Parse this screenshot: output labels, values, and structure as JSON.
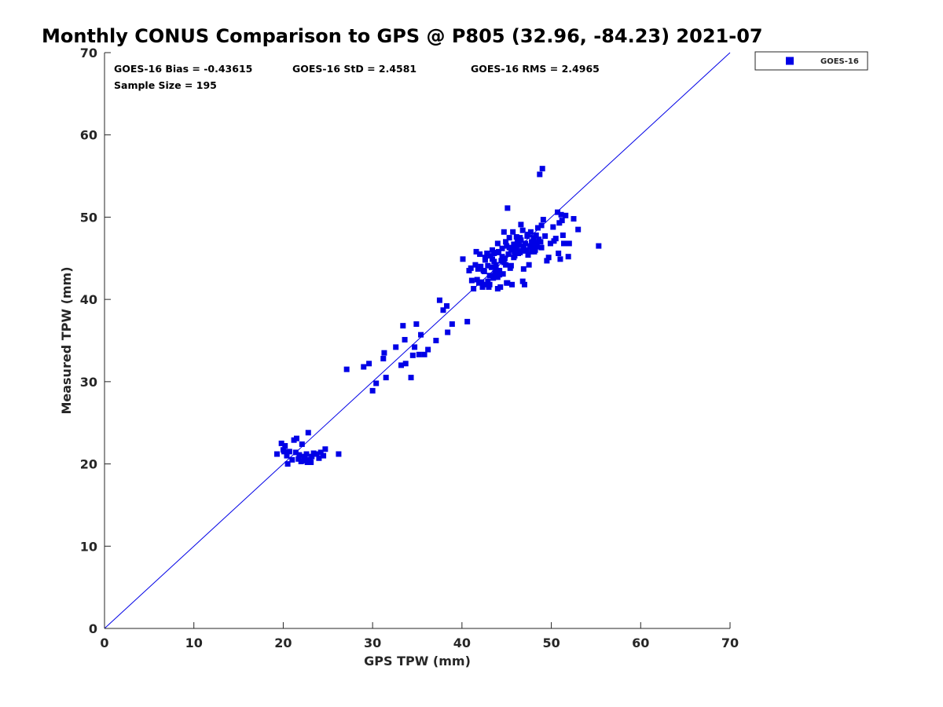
{
  "chart_data": {
    "type": "scatter",
    "title": "Monthly CONUS Comparison to GPS @ P805 (32.96, -84.23) 2021-07",
    "xlabel": "GPS TPW (mm)",
    "ylabel": "Measured TPW (mm)",
    "xlim": [
      0,
      70
    ],
    "ylim": [
      0,
      70
    ],
    "xticks": [
      0,
      10,
      20,
      30,
      40,
      50,
      60,
      70
    ],
    "yticks": [
      0,
      10,
      20,
      30,
      40,
      50,
      60,
      70
    ],
    "grid": false,
    "legend_position": "outside-top-right",
    "reference_line": "one-to-one",
    "marker": "square",
    "color": "#0000e6",
    "stats": {
      "bias": "GOES-16 Bias = -0.43615",
      "std": "GOES-16 StD = 2.4581",
      "rms": "GOES-16 RMS = 2.4965",
      "sample": "Sample Size = 195"
    },
    "series": [
      {
        "name": "GOES-16",
        "points": [
          [
            19.3,
            21.2
          ],
          [
            19.8,
            22.5
          ],
          [
            20.0,
            21.7
          ],
          [
            20.2,
            22.2
          ],
          [
            20.4,
            21.0
          ],
          [
            20.5,
            20.0
          ],
          [
            20.7,
            21.5
          ],
          [
            21.2,
            22.9
          ],
          [
            21.5,
            23.1
          ],
          [
            21.7,
            20.6
          ],
          [
            21.8,
            21.1
          ],
          [
            22.0,
            20.3
          ],
          [
            22.1,
            22.4
          ],
          [
            22.3,
            20.8
          ],
          [
            22.5,
            20.4
          ],
          [
            22.7,
            20.2
          ],
          [
            22.8,
            23.8
          ],
          [
            23.0,
            20.5
          ],
          [
            23.2,
            20.9
          ],
          [
            23.4,
            21.3
          ],
          [
            23.7,
            21.2
          ],
          [
            24.0,
            20.7
          ],
          [
            24.2,
            21.4
          ],
          [
            24.5,
            21.0
          ],
          [
            24.7,
            21.8
          ],
          [
            26.2,
            21.2
          ],
          [
            27.1,
            31.5
          ],
          [
            29.0,
            31.8
          ],
          [
            29.6,
            32.2
          ],
          [
            30.0,
            28.9
          ],
          [
            30.4,
            29.8
          ],
          [
            31.2,
            32.8
          ],
          [
            31.3,
            33.5
          ],
          [
            31.5,
            30.5
          ],
          [
            32.6,
            34.2
          ],
          [
            33.2,
            32.0
          ],
          [
            33.4,
            36.8
          ],
          [
            33.6,
            35.1
          ],
          [
            33.7,
            32.2
          ],
          [
            34.3,
            30.5
          ],
          [
            34.5,
            33.2
          ],
          [
            34.7,
            34.2
          ],
          [
            34.9,
            37.0
          ],
          [
            35.2,
            33.3
          ],
          [
            35.4,
            35.7
          ],
          [
            35.8,
            33.3
          ],
          [
            36.2,
            33.9
          ],
          [
            37.1,
            35.0
          ],
          [
            37.5,
            39.9
          ],
          [
            37.9,
            38.7
          ],
          [
            38.3,
            39.2
          ],
          [
            38.4,
            36.0
          ],
          [
            38.9,
            37.0
          ],
          [
            40.1,
            44.9
          ],
          [
            40.6,
            37.3
          ],
          [
            40.8,
            43.5
          ],
          [
            41.0,
            43.8
          ],
          [
            41.1,
            42.3
          ],
          [
            41.3,
            41.3
          ],
          [
            41.5,
            44.2
          ],
          [
            41.6,
            45.8
          ],
          [
            41.7,
            42.4
          ],
          [
            41.8,
            43.7
          ],
          [
            42.0,
            45.5
          ],
          [
            42.1,
            44.0
          ],
          [
            42.2,
            42.1
          ],
          [
            42.3,
            41.5
          ],
          [
            42.5,
            43.4
          ],
          [
            42.6,
            44.8
          ],
          [
            42.7,
            41.8
          ],
          [
            42.8,
            45.6
          ],
          [
            42.9,
            44.1
          ],
          [
            43.0,
            41.5
          ],
          [
            43.1,
            42.9
          ],
          [
            43.2,
            45.3
          ],
          [
            43.3,
            43.9
          ],
          [
            43.4,
            44.9
          ],
          [
            43.5,
            42.6
          ],
          [
            43.6,
            45.6
          ],
          [
            43.7,
            43.2
          ],
          [
            43.8,
            44.2
          ],
          [
            43.9,
            42.8
          ],
          [
            44.0,
            46.8
          ],
          [
            44.0,
            41.3
          ],
          [
            44.1,
            45.8
          ],
          [
            44.2,
            43.5
          ],
          [
            44.3,
            41.5
          ],
          [
            44.4,
            44.7
          ],
          [
            44.5,
            46.2
          ],
          [
            44.6,
            43.1
          ],
          [
            44.7,
            48.2
          ],
          [
            44.8,
            45.0
          ],
          [
            44.9,
            44.2
          ],
          [
            45.0,
            46.5
          ],
          [
            45.0,
            42.0
          ],
          [
            45.1,
            51.1
          ],
          [
            45.2,
            45.5
          ],
          [
            45.3,
            47.5
          ],
          [
            45.4,
            43.8
          ],
          [
            45.5,
            46.0
          ],
          [
            45.6,
            41.8
          ],
          [
            45.7,
            48.2
          ],
          [
            45.8,
            45.1
          ],
          [
            45.9,
            46.3
          ],
          [
            46.0,
            45.8
          ],
          [
            46.1,
            46.0
          ],
          [
            46.2,
            47.1
          ],
          [
            46.3,
            45.6
          ],
          [
            46.4,
            46.8
          ],
          [
            46.5,
            47.5
          ],
          [
            46.6,
            49.1
          ],
          [
            46.7,
            45.9
          ],
          [
            46.8,
            42.2
          ],
          [
            46.9,
            43.7
          ],
          [
            47.0,
            41.8
          ],
          [
            47.1,
            46.8
          ],
          [
            47.2,
            46.0
          ],
          [
            47.3,
            47.7
          ],
          [
            47.4,
            45.4
          ],
          [
            47.5,
            44.2
          ],
          [
            47.6,
            46.5
          ],
          [
            47.7,
            48.2
          ],
          [
            47.8,
            47.0
          ],
          [
            47.9,
            46.2
          ],
          [
            48.0,
            47.5
          ],
          [
            48.1,
            46.7
          ],
          [
            48.2,
            46.0
          ],
          [
            48.3,
            47.8
          ],
          [
            48.4,
            46.4
          ],
          [
            48.5,
            48.7
          ],
          [
            48.6,
            47.3
          ],
          [
            48.7,
            55.2
          ],
          [
            48.8,
            47.0
          ],
          [
            48.9,
            49.0
          ],
          [
            49.0,
            55.9
          ],
          [
            49.1,
            49.7
          ],
          [
            49.5,
            44.7
          ],
          [
            49.7,
            45.1
          ],
          [
            49.9,
            46.8
          ],
          [
            50.2,
            48.8
          ],
          [
            50.3,
            47.1
          ],
          [
            50.5,
            47.4
          ],
          [
            50.7,
            50.6
          ],
          [
            50.8,
            45.6
          ],
          [
            50.9,
            49.3
          ],
          [
            51.0,
            44.9
          ],
          [
            51.1,
            50.3
          ],
          [
            51.2,
            49.6
          ],
          [
            51.3,
            47.8
          ],
          [
            51.4,
            46.8
          ],
          [
            51.6,
            50.2
          ],
          [
            51.9,
            45.2
          ],
          [
            52.0,
            46.8
          ],
          [
            52.5,
            49.8
          ],
          [
            53.0,
            48.5
          ],
          [
            55.3,
            46.5
          ],
          [
            21.0,
            20.5
          ],
          [
            21.4,
            21.4
          ],
          [
            22.4,
            20.9
          ],
          [
            22.6,
            21.2
          ],
          [
            23.1,
            20.2
          ],
          [
            20.1,
            21.5
          ],
          [
            46.6,
            47.2
          ],
          [
            45.9,
            45.3
          ],
          [
            44.7,
            44.5
          ],
          [
            43.9,
            45.7
          ],
          [
            42.4,
            43.5
          ],
          [
            47.7,
            46.4
          ],
          [
            46.1,
            47.6
          ],
          [
            48.3,
            46.9
          ],
          [
            45.3,
            46.3
          ],
          [
            44.2,
            43.0
          ],
          [
            43.6,
            44.6
          ],
          [
            47.0,
            45.9
          ],
          [
            49.3,
            47.7
          ],
          [
            42.9,
            42.2
          ],
          [
            41.9,
            42.0
          ],
          [
            46.8,
            48.4
          ],
          [
            44.9,
            47.0
          ],
          [
            48.1,
            45.8
          ],
          [
            43.1,
            41.8
          ],
          [
            45.8,
            46.7
          ],
          [
            47.4,
            47.9
          ],
          [
            46.3,
            46.6
          ],
          [
            44.5,
            45.2
          ],
          [
            48.9,
            46.3
          ],
          [
            42.6,
            45.1
          ],
          [
            43.8,
            43.8
          ],
          [
            45.5,
            44.1
          ],
          [
            46.9,
            46.4
          ],
          [
            47.8,
            45.8
          ],
          [
            44.0,
            42.7
          ],
          [
            45.1,
            42.0
          ],
          [
            46.5,
            45.7
          ],
          [
            43.4,
            46.0
          ]
        ]
      }
    ]
  }
}
